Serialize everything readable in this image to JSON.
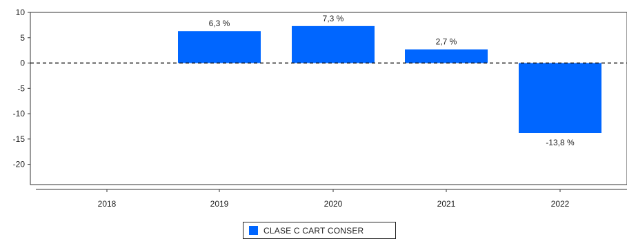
{
  "chart_data": {
    "type": "bar",
    "categories": [
      "2018",
      "2019",
      "2020",
      "2021",
      "2022"
    ],
    "series": [
      {
        "name": "CLASE C CART CONSER",
        "values": [
          null,
          6.3,
          7.3,
          2.7,
          -13.8
        ],
        "labels": [
          "",
          "6,3 %",
          "7,3 %",
          "2,7 %",
          "-13,8 %"
        ],
        "color": "#0066ff"
      }
    ],
    "yticks": [
      10,
      5,
      0,
      -5,
      -10,
      -15,
      -20
    ],
    "ylim": [
      -24,
      10
    ],
    "reference_line": 0,
    "grid": false,
    "legend_position": "bottom-center"
  },
  "legend": {
    "label": "CLASE C CART CONSER"
  }
}
